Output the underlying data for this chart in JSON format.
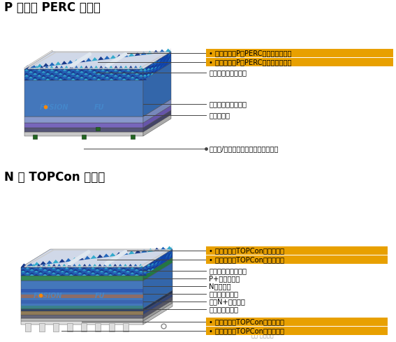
{
  "bg_color": "#ffffff",
  "title_perc": "P 型单晶 PERC 电池：",
  "title_topcon": "N 型 TOPCon 电池：",
  "gold_color": "#E8A000",
  "perc_gold_labels": [
    "• 銀主棹（用P型PERC主棹銀浆制成）",
    "• 銀细棹（用P型PERC细棹銀浆制成）"
  ],
  "perc_black_labels": [
    "正面钓化及减反射层",
    "背面钓化及减反射层",
    "局域铝背場",
    "铝栅线/銀胳栅线（用背面銀浆制成）"
  ],
  "topcon_gold_top": [
    "• 銀主棹（用TOPCon銀浆制成）",
    "• 銀细棹（用TOPCon銀浆制成）"
  ],
  "topcon_black_labels": [
    "正面钓化及减反射层",
    "P+扩散发射极",
    "N型硅衆底",
    "背面隙穿氧化层",
    "背面N+多晶硅层",
    "背面钓化保护层"
  ],
  "topcon_gold_bot": [
    "• 銀主棹（用TOPCon銀浆制成）",
    "• 銀细棹（用TOPCon銀浆制成）"
  ],
  "watermark": "雪球·金川财经",
  "perc_layers_front": [
    [
      "#c8c8c8",
      6
    ],
    [
      "#555577",
      6
    ],
    [
      "#7766bb",
      7
    ],
    [
      "#8899cc",
      9
    ],
    [
      "#4477bb",
      52
    ],
    [
      "#2255aa",
      16
    ]
  ],
  "perc_layers_side": [
    [
      "#aaaaaa",
      6
    ],
    [
      "#444466",
      6
    ],
    [
      "#6655aa",
      7
    ],
    [
      "#7788bb",
      9
    ],
    [
      "#3366aa",
      52
    ],
    [
      "#1144aa",
      16
    ]
  ],
  "topcon_layers_front": [
    [
      "#dddddd",
      5
    ],
    [
      "#bbbbbb",
      4
    ],
    [
      "#666677",
      5
    ],
    [
      "#445588",
      5
    ],
    [
      "#334466",
      4
    ],
    [
      "#4477bb",
      40
    ],
    [
      "#338855",
      7
    ],
    [
      "#2255aa",
      12
    ]
  ],
  "topcon_layers_side": [
    [
      "#bbbbbb",
      5
    ],
    [
      "#999999",
      4
    ],
    [
      "#555566",
      5
    ],
    [
      "#334477",
      5
    ],
    [
      "#223355",
      4
    ],
    [
      "#3366aa",
      40
    ],
    [
      "#227744",
      7
    ],
    [
      "#1144aa",
      12
    ]
  ]
}
